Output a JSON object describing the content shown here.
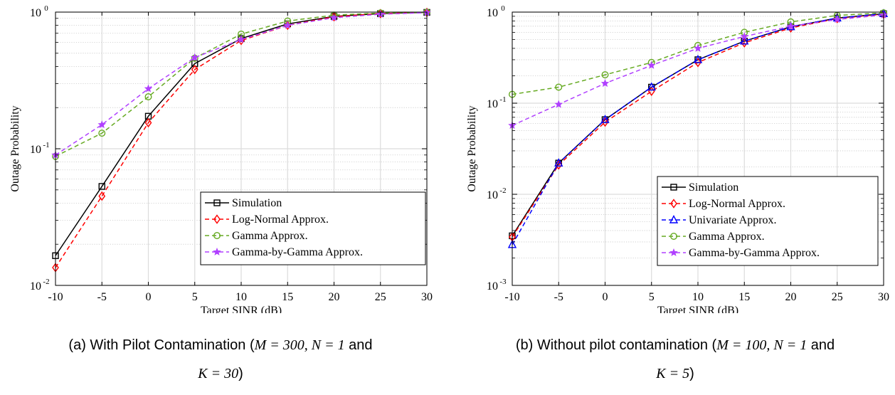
{
  "chart_data": [
    {
      "type": "line",
      "log_y": true,
      "grid": true,
      "legend_position": "bottom-right",
      "xlabel": "Target SINR (dB)",
      "ylabel": "Outage Probability",
      "xlim": [
        -10,
        30
      ],
      "ylim": [
        0.01,
        1
      ],
      "xticks": [
        "-10",
        "-5",
        "0",
        "5",
        "10",
        "15",
        "20",
        "25",
        "30"
      ],
      "yticks": [
        {
          "base": "10",
          "exp": "-2"
        },
        {
          "base": "10",
          "exp": "-1"
        },
        {
          "base": "10",
          "exp": "0"
        }
      ],
      "caption": {
        "line1_prefix": "(a) With Pilot Contamination (",
        "line1_math": "M = 300, N = 1",
        "line1_suffix": " and",
        "line2_math": "K = 30",
        "line2_suffix": ")"
      },
      "x": [
        -10,
        -5,
        0,
        5,
        10,
        15,
        20,
        25,
        30
      ],
      "series": [
        {
          "name": "Simulation",
          "color": "#000000",
          "dash": "solid",
          "marker": "square",
          "values": [
            0.0165,
            0.053,
            0.173,
            0.42,
            0.64,
            0.82,
            0.93,
            0.975,
            0.995
          ]
        },
        {
          "name": "Log-Normal Approx.",
          "color": "#ff0000",
          "dash": "dashed",
          "marker": "diamond",
          "values": [
            0.0135,
            0.045,
            0.155,
            0.38,
            0.62,
            0.8,
            0.925,
            0.975,
            0.995
          ]
        },
        {
          "name": "Gamma Approx.",
          "color": "#66aa22",
          "dash": "dashed",
          "marker": "circle",
          "values": [
            0.088,
            0.13,
            0.24,
            0.46,
            0.69,
            0.86,
            0.95,
            0.985,
            0.998
          ]
        },
        {
          "name": "Gamma-by-Gamma Approx.",
          "color": "#b040ff",
          "dash": "dashed",
          "marker": "star",
          "values": [
            0.09,
            0.15,
            0.275,
            0.465,
            0.63,
            0.8,
            0.91,
            0.965,
            0.99
          ]
        }
      ]
    },
    {
      "type": "line",
      "log_y": true,
      "grid": true,
      "legend_position": "bottom-right",
      "xlabel": "Target SINR (dB)",
      "ylabel": "Outage Probability",
      "xlim": [
        -10,
        30
      ],
      "ylim": [
        0.001,
        1
      ],
      "xticks": [
        "-10",
        "-5",
        "0",
        "5",
        "10",
        "15",
        "20",
        "25",
        "30"
      ],
      "yticks": [
        {
          "base": "10",
          "exp": "-3"
        },
        {
          "base": "10",
          "exp": "-2"
        },
        {
          "base": "10",
          "exp": "-1"
        },
        {
          "base": "10",
          "exp": "0"
        }
      ],
      "caption": {
        "line1_prefix": "(b) Without pilot contamination (",
        "line1_math": "M = 100, N = 1",
        "line1_suffix": " and",
        "line2_math": "K = 5",
        "line2_suffix": ")"
      },
      "x": [
        -10,
        -5,
        0,
        5,
        10,
        15,
        20,
        25,
        30
      ],
      "series": [
        {
          "name": "Simulation",
          "color": "#000000",
          "dash": "solid",
          "marker": "square",
          "values": [
            0.0035,
            0.022,
            0.066,
            0.15,
            0.3,
            0.48,
            0.69,
            0.86,
            0.96
          ]
        },
        {
          "name": "Log-Normal Approx.",
          "color": "#ff0000",
          "dash": "dashed",
          "marker": "diamond",
          "values": [
            0.0034,
            0.021,
            0.062,
            0.135,
            0.28,
            0.46,
            0.67,
            0.85,
            0.95
          ]
        },
        {
          "name": "Univariate Approx.",
          "color": "#0000ff",
          "dash": "dashed",
          "marker": "triangle",
          "values": [
            0.0028,
            0.022,
            0.066,
            0.15,
            0.3,
            0.48,
            0.69,
            0.86,
            0.96
          ]
        },
        {
          "name": "Gamma Approx.",
          "color": "#66aa22",
          "dash": "dashed",
          "marker": "circle",
          "values": [
            0.125,
            0.15,
            0.205,
            0.28,
            0.43,
            0.6,
            0.78,
            0.92,
            0.98
          ]
        },
        {
          "name": "Gamma-by-Gamma Approx.",
          "color": "#b040ff",
          "dash": "dashed",
          "marker": "star",
          "values": [
            0.057,
            0.097,
            0.165,
            0.26,
            0.4,
            0.54,
            0.7,
            0.83,
            0.93
          ]
        }
      ]
    }
  ]
}
